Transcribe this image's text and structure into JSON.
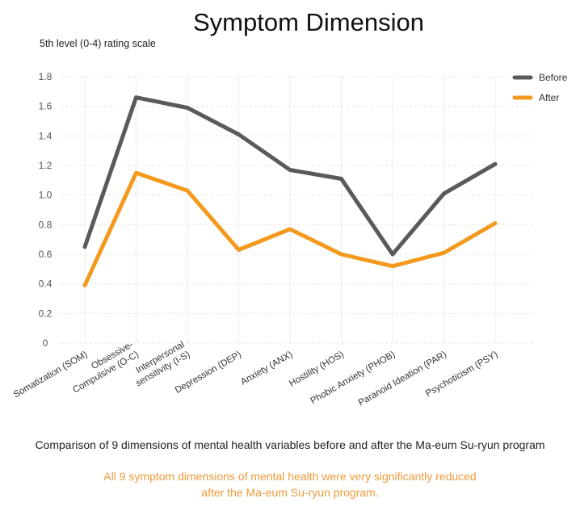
{
  "chart_data": {
    "type": "line",
    "title": "Symptom Dimension",
    "ylabel": "5th level (0-4) rating scale",
    "xlabel": "",
    "ylim": [
      0,
      1.8
    ],
    "yticks": [
      "1.8",
      "1.6",
      "1.4",
      "1.2",
      "1.0",
      "0.8",
      "0.6",
      "0.4",
      "0.2",
      "0"
    ],
    "ytick_values": [
      1.8,
      1.6,
      1.4,
      1.2,
      1.0,
      0.8,
      0.6,
      0.4,
      0.2,
      0
    ],
    "categories": [
      [
        "Somatization (SOM)"
      ],
      [
        "Obsessive-",
        "Compulsive (O-C)"
      ],
      [
        "Interpersonal",
        "sensitivity (I-S)"
      ],
      [
        "Depression (DEP)"
      ],
      [
        "Anxiety (ANX)"
      ],
      [
        "Hostility (HOS)"
      ],
      [
        "Phobic Anxiety (PHOB)"
      ],
      [
        "Paranoid Ideation (PAR)"
      ],
      [
        "Psychoticism (PSY)"
      ]
    ],
    "series": [
      {
        "name": "Before",
        "color": "#5a5a5a",
        "values": [
          0.65,
          1.66,
          1.59,
          1.41,
          1.17,
          1.11,
          0.6,
          1.01,
          1.21
        ]
      },
      {
        "name": "After",
        "color": "#f39a1e",
        "values": [
          0.39,
          1.15,
          1.03,
          0.63,
          0.77,
          0.6,
          0.52,
          0.61,
          0.81
        ]
      }
    ],
    "legend_position": "top-right",
    "grid": true
  },
  "caption": {
    "main": "Comparison of 9 dimensions of mental health variables before and after the Ma-eum Su-ryun program",
    "note_line1": "All 9 symptom dimensions of mental health were very significantly reduced",
    "note_line2": "after the Ma-eum Su-ryun program."
  }
}
